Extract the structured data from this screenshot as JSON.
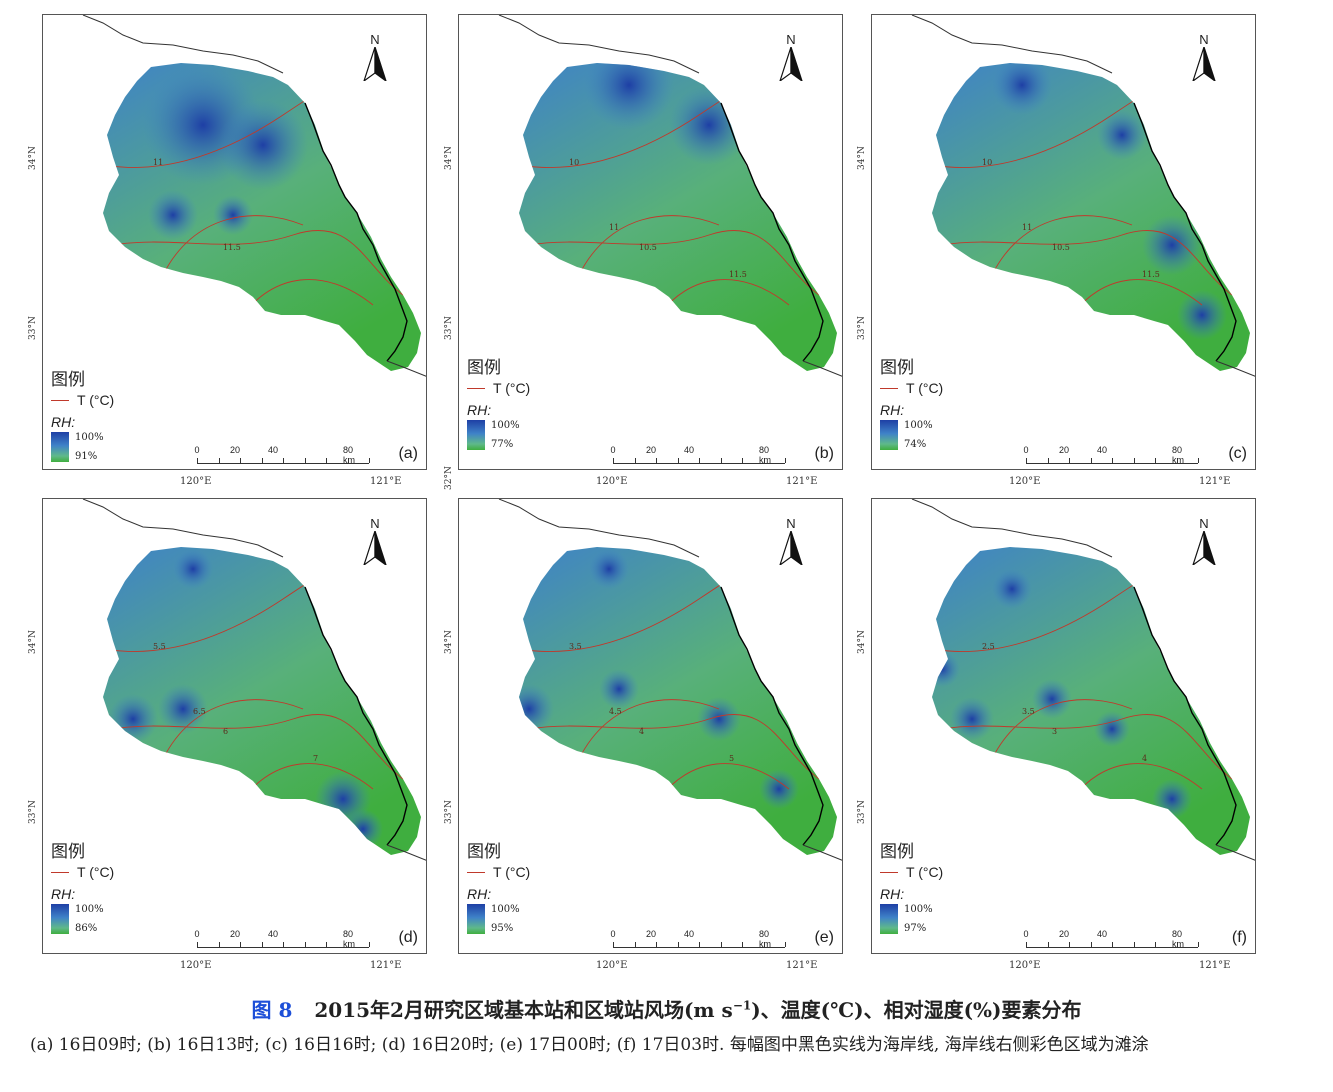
{
  "figure": {
    "number_label": "图 8",
    "title_pre": "2015年2月研究区域基本站和区域站风场(m s",
    "title_sup": "−1",
    "title_post": ")、温度(℃)、相对湿度(%)要素分布",
    "subcaption": "(a) 16日09时; (b) 16日13时; (c) 16日16时; (d) 16日20时; (e) 17日00时; (f) 17日03时. 每幅图中黑色实线为海岸线, 海岸线右侧彩色区域为滩涂"
  },
  "common": {
    "north_label": "N",
    "legend_title": "图例",
    "legend_t": "T (°C)",
    "legend_rh": "RH:",
    "rh_max": "100%",
    "scale_labels": [
      "0",
      "20",
      "40",
      "80 km"
    ],
    "lat_labels": [
      "34°N",
      "33°N"
    ],
    "lat_extra": "32°N",
    "lon_labels": [
      "120°E",
      "121°E"
    ]
  },
  "colors": {
    "high_rh": "#1e3fa5",
    "mid_rh": "#3f82c8",
    "low_rh": "#3fae3f",
    "isotherm": "#c0392b",
    "coastline": "#000000"
  },
  "panels": [
    {
      "id": "a",
      "label": "(a)",
      "rh_min": "91%",
      "isotherms": [
        "11",
        "11.5"
      ]
    },
    {
      "id": "b",
      "label": "(b)",
      "rh_min": "77%",
      "isotherms": [
        "10",
        "10.5",
        "11",
        "11.5"
      ]
    },
    {
      "id": "c",
      "label": "(c)",
      "rh_min": "74%",
      "isotherms": [
        "10",
        "10.5",
        "11",
        "11.5"
      ]
    },
    {
      "id": "d",
      "label": "(d)",
      "rh_min": "86%",
      "isotherms": [
        "5.5",
        "6",
        "6.5",
        "7"
      ]
    },
    {
      "id": "e",
      "label": "(e)",
      "rh_min": "95%",
      "isotherms": [
        "3.5",
        "4",
        "4.5",
        "5"
      ]
    },
    {
      "id": "f",
      "label": "(f)",
      "rh_min": "97%",
      "isotherms": [
        "2.5",
        "3",
        "3.5",
        "4"
      ]
    }
  ]
}
